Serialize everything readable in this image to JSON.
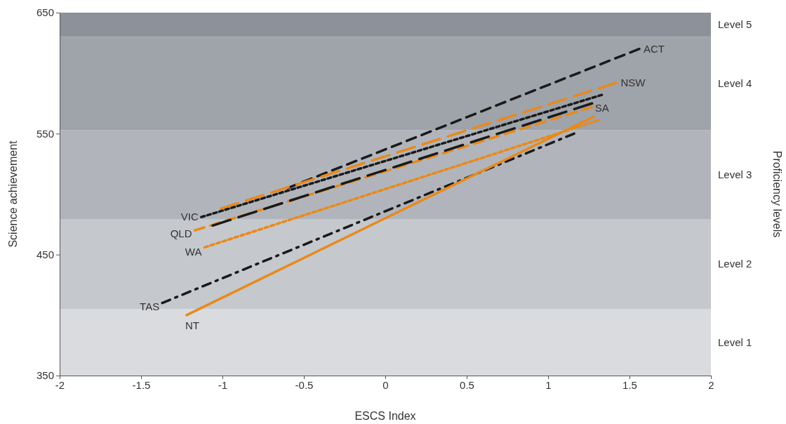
{
  "chart_data": {
    "type": "line",
    "xlabel": "ESCS Index",
    "ylabel": "Science achievement",
    "annotations": [
      "Proficiency levels"
    ],
    "xlim": [
      -2,
      2
    ],
    "xticks": [
      -2,
      -1.5,
      -1,
      -0.5,
      0,
      0.5,
      1,
      1.5,
      2
    ],
    "ylim": [
      350,
      650
    ],
    "yticks": [
      350,
      450,
      550,
      650
    ],
    "grid": false,
    "bands": [
      {
        "axis": "y",
        "from": 350,
        "to": 405,
        "label": "Level 1",
        "color": "#d9dbdf"
      },
      {
        "axis": "y",
        "from": 405,
        "to": 479,
        "label": "Level 2",
        "color": "#c5c8cd"
      },
      {
        "axis": "y",
        "from": 479,
        "to": 553,
        "label": "Level 3",
        "color": "#b1b5bb"
      },
      {
        "axis": "y",
        "from": 553,
        "to": 630,
        "label": "Level 4",
        "color": "#9fa3aa"
      },
      {
        "axis": "y",
        "from": 630,
        "to": 650,
        "label": "Level 5",
        "color": "#8d9199"
      }
    ],
    "series": [
      {
        "name": "ACT",
        "color": "#1a1a1a",
        "line_style": "dashed",
        "x": [
          -0.6,
          1.56
        ],
        "values": [
          505,
          620
        ]
      },
      {
        "name": "NSW",
        "color": "#e8891c",
        "line_style": "longdash",
        "x": [
          -1.01,
          1.42
        ],
        "values": [
          488,
          592
        ]
      },
      {
        "name": "VIC",
        "color": "#1a1a1a",
        "line_style": "dotted",
        "x": [
          -1.13,
          1.33
        ],
        "values": [
          481,
          582
        ]
      },
      {
        "name": "QLD",
        "color": "#e8891c",
        "line_style": "dashed",
        "x": [
          -1.17,
          1.27
        ],
        "values": [
          470,
          572
        ]
      },
      {
        "name": "SA",
        "color": "#1a1a1a",
        "line_style": "longdash",
        "x": [
          -1.06,
          1.27
        ],
        "values": [
          474,
          575
        ]
      },
      {
        "name": "WA",
        "color": "#e8891c",
        "line_style": "dotted",
        "x": [
          -1.11,
          1.31
        ],
        "values": [
          456,
          561
        ]
      },
      {
        "name": "TAS",
        "color": "#1a1a1a",
        "line_style": "dashdot",
        "x": [
          -1.37,
          1.16
        ],
        "values": [
          410,
          550
        ]
      },
      {
        "name": "NT",
        "color": "#e8891c",
        "line_style": "solid",
        "x": [
          -1.22,
          1.28
        ],
        "values": [
          400,
          564
        ]
      }
    ]
  }
}
